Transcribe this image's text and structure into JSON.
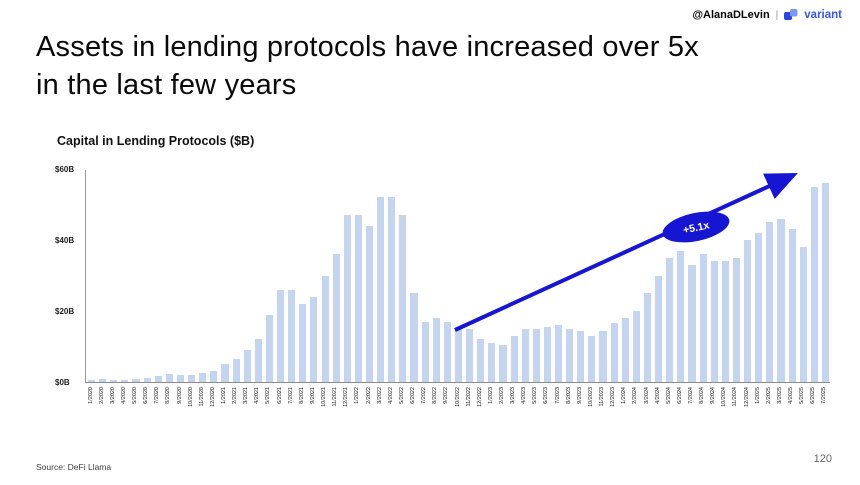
{
  "header": {
    "handle": "@AlanaDLevin",
    "separator": "|",
    "brand": "variant",
    "brand_color": "#3a56e4"
  },
  "title": {
    "line1": "Assets in lending protocols have increased over 5x",
    "line2": "in the last few years"
  },
  "chart_data": {
    "type": "bar",
    "title": "Capital in Lending Protocols ($B)",
    "xlabel": "",
    "ylabel": "",
    "ylim": [
      0,
      60
    ],
    "grid": false,
    "legend": false,
    "bar_color": "#c5d5f0",
    "y_ticks": [
      {
        "label": "$0B",
        "value": 0
      },
      {
        "label": "$20B",
        "value": 20
      },
      {
        "label": "$40B",
        "value": 40
      },
      {
        "label": "$60B",
        "value": 60
      }
    ],
    "categories": [
      "1/2020",
      "2/2020",
      "3/2020",
      "4/2020",
      "5/2020",
      "6/2020",
      "7/2020",
      "8/2020",
      "9/2020",
      "10/2020",
      "11/2020",
      "12/2020",
      "1/2021",
      "2/2021",
      "3/2021",
      "4/2021",
      "5/2021",
      "6/2021",
      "7/2021",
      "8/2021",
      "9/2021",
      "10/2021",
      "11/2021",
      "12/2021",
      "1/2022",
      "2/2022",
      "3/2022",
      "4/2022",
      "5/2022",
      "6/2022",
      "7/2022",
      "8/2022",
      "9/2022",
      "10/2022",
      "11/2022",
      "12/2022",
      "1/2023",
      "2/2023",
      "3/2023",
      "4/2023",
      "5/2023",
      "6/2023",
      "7/2023",
      "8/2023",
      "9/2023",
      "10/2023",
      "11/2023",
      "12/2023",
      "1/2024",
      "2/2024",
      "3/2024",
      "4/2024",
      "5/2024",
      "6/2024",
      "7/2024",
      "8/2024",
      "9/2024",
      "10/2024",
      "11/2024",
      "12/2024",
      "1/2025",
      "2/2025",
      "3/2025",
      "4/2025",
      "5/2025",
      "6/2025",
      "7/2025"
    ],
    "values": [
      0.6,
      0.8,
      0.6,
      0.7,
      0.9,
      1.1,
      1.6,
      2.2,
      2.0,
      2.1,
      2.4,
      3.0,
      5,
      6.5,
      9,
      12,
      19,
      26,
      26,
      22,
      24,
      30,
      36,
      47,
      47,
      44,
      52,
      52,
      47,
      25,
      17,
      18,
      17,
      15,
      15,
      12,
      11,
      10.5,
      13,
      15,
      15,
      15.5,
      16,
      15,
      14.5,
      13,
      14.5,
      16.5,
      18,
      20,
      25,
      30,
      35,
      37,
      33,
      36,
      34,
      34,
      35,
      40,
      42,
      45,
      46,
      43,
      38,
      55,
      56
    ],
    "annotation": {
      "label": "+5.1x",
      "color": "#1616d2"
    }
  },
  "footer": {
    "source": "Source: DeFi Llama",
    "page_number": "120"
  }
}
